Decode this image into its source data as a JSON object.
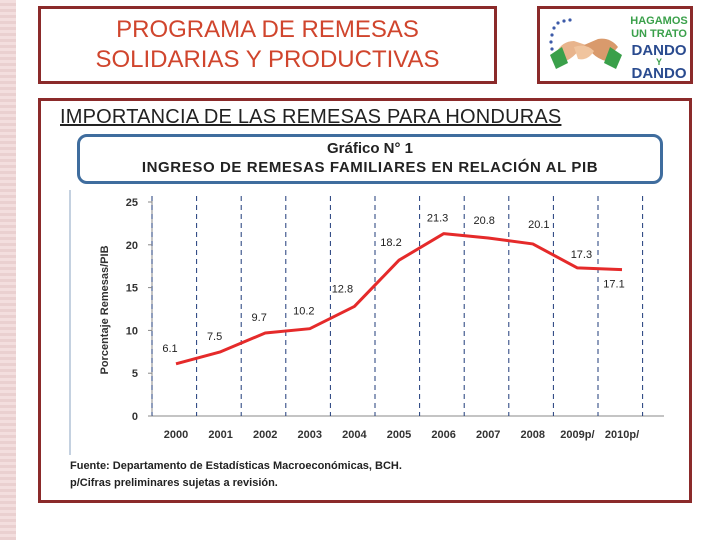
{
  "header": {
    "title_line1": "PROGRAMA DE REMESAS",
    "title_line2": "SOLIDARIAS Y PRODUCTIVAS"
  },
  "logo": {
    "line1": "HAGAMOS",
    "line2": "UN TRATO",
    "line3": "DANDO",
    "line4": "Y",
    "line5": "DANDO"
  },
  "subtitle": "IMPORTANCIA DE LAS REMESAS PARA HONDURAS",
  "chart_header": {
    "line1": "Gráfico N° 1",
    "line2": "INGRESO DE REMESAS FAMILIARES EN RELACIÓN AL PIB"
  },
  "chart_data": {
    "type": "line",
    "title": "INGRESO DE REMESAS FAMILIARES EN RELACIÓN AL PIB",
    "xlabel": "",
    "ylabel": "Porcentaje Remesas/PIB",
    "categories": [
      "2000",
      "2001",
      "2002",
      "2003",
      "2004",
      "2005",
      "2006",
      "2007",
      "2008",
      "2009p/",
      "2010p/"
    ],
    "values": [
      6.1,
      7.5,
      9.7,
      10.2,
      12.8,
      18.2,
      21.3,
      20.8,
      20.1,
      17.3,
      17.1
    ],
    "data_labels": [
      "6.1",
      "7.5",
      "9.7",
      "10.2",
      "12.8",
      "18.2",
      "21.3",
      "20.8",
      "20.1",
      "17.3",
      "17.1"
    ],
    "yticks": [
      0,
      5,
      10,
      15,
      20,
      25
    ],
    "ylim": [
      0,
      25
    ],
    "grid": "vertical-dashed",
    "line_color": "#e52a2a"
  },
  "source": {
    "line1": "Fuente: Departamento de Estadísticas Macroeconómicas, BCH.",
    "line2": "p/Cifras preliminares sujetas a revisión."
  }
}
